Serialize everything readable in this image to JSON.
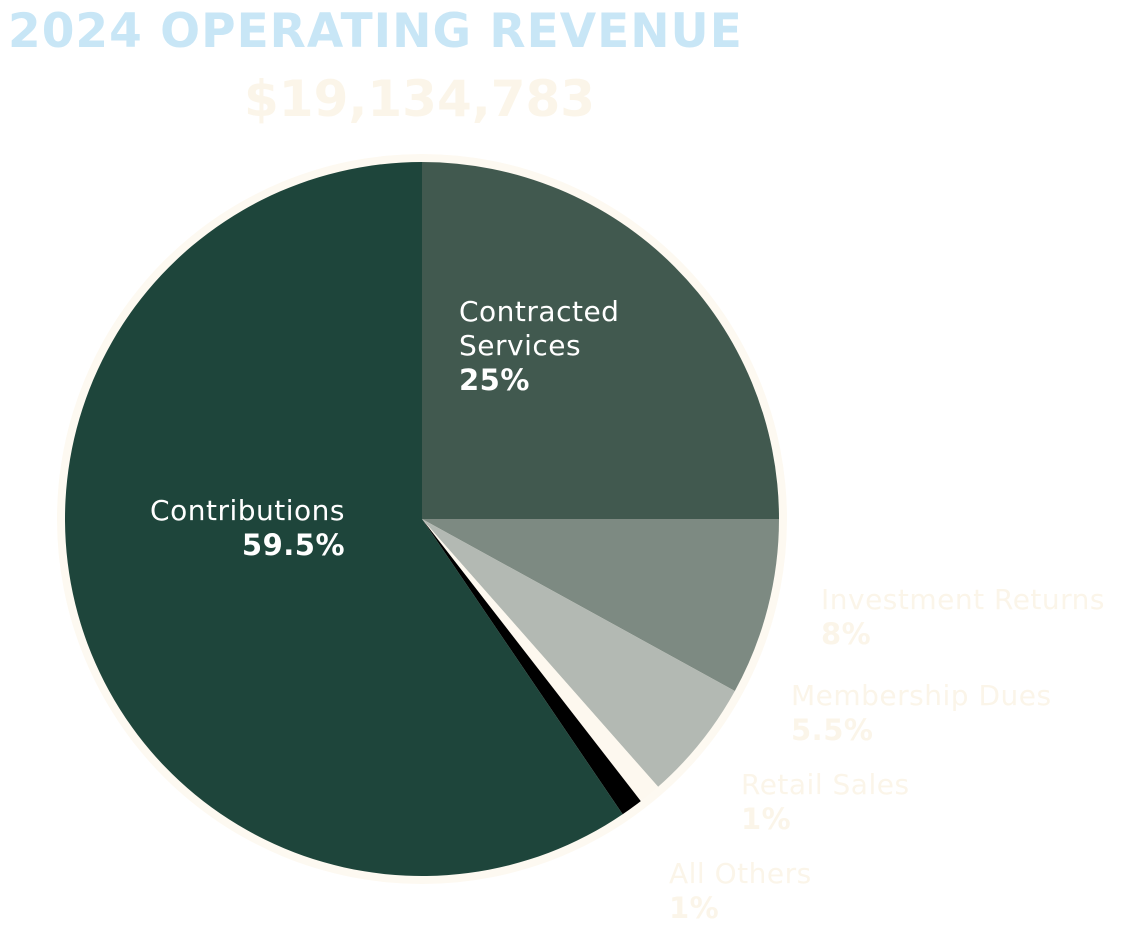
{
  "colors": {
    "title": "#c8e6f6",
    "total": "#fbf5e9",
    "outside_label": "#fbf5e9",
    "inside_label": "#ffffff",
    "pie_outline": "#fdf9f1"
  },
  "chart_data": {
    "type": "pie",
    "title": "2024 OPERATING REVENUE",
    "total_label": "$19,134,783",
    "start_angle_deg": 0,
    "direction": "clockwise",
    "slices": [
      {
        "label": "Contracted Services",
        "value": 25,
        "pct_label": "25%",
        "color": "#41594f"
      },
      {
        "label": "Investment Returns",
        "value": 8,
        "pct_label": "8%",
        "color": "#7d8a82"
      },
      {
        "label": "Membership Dues",
        "value": 5.5,
        "pct_label": "5.5%",
        "color": "#b3b9b3"
      },
      {
        "label": "Retail Sales",
        "value": 1,
        "pct_label": "1%",
        "color": "#fdf8ef"
      },
      {
        "label": "All Others",
        "value": 1,
        "pct_label": "1%",
        "color": "#000000"
      },
      {
        "label": "Contributions",
        "value": 59.5,
        "pct_label": "59.5%",
        "color": "#1e453b"
      }
    ]
  }
}
